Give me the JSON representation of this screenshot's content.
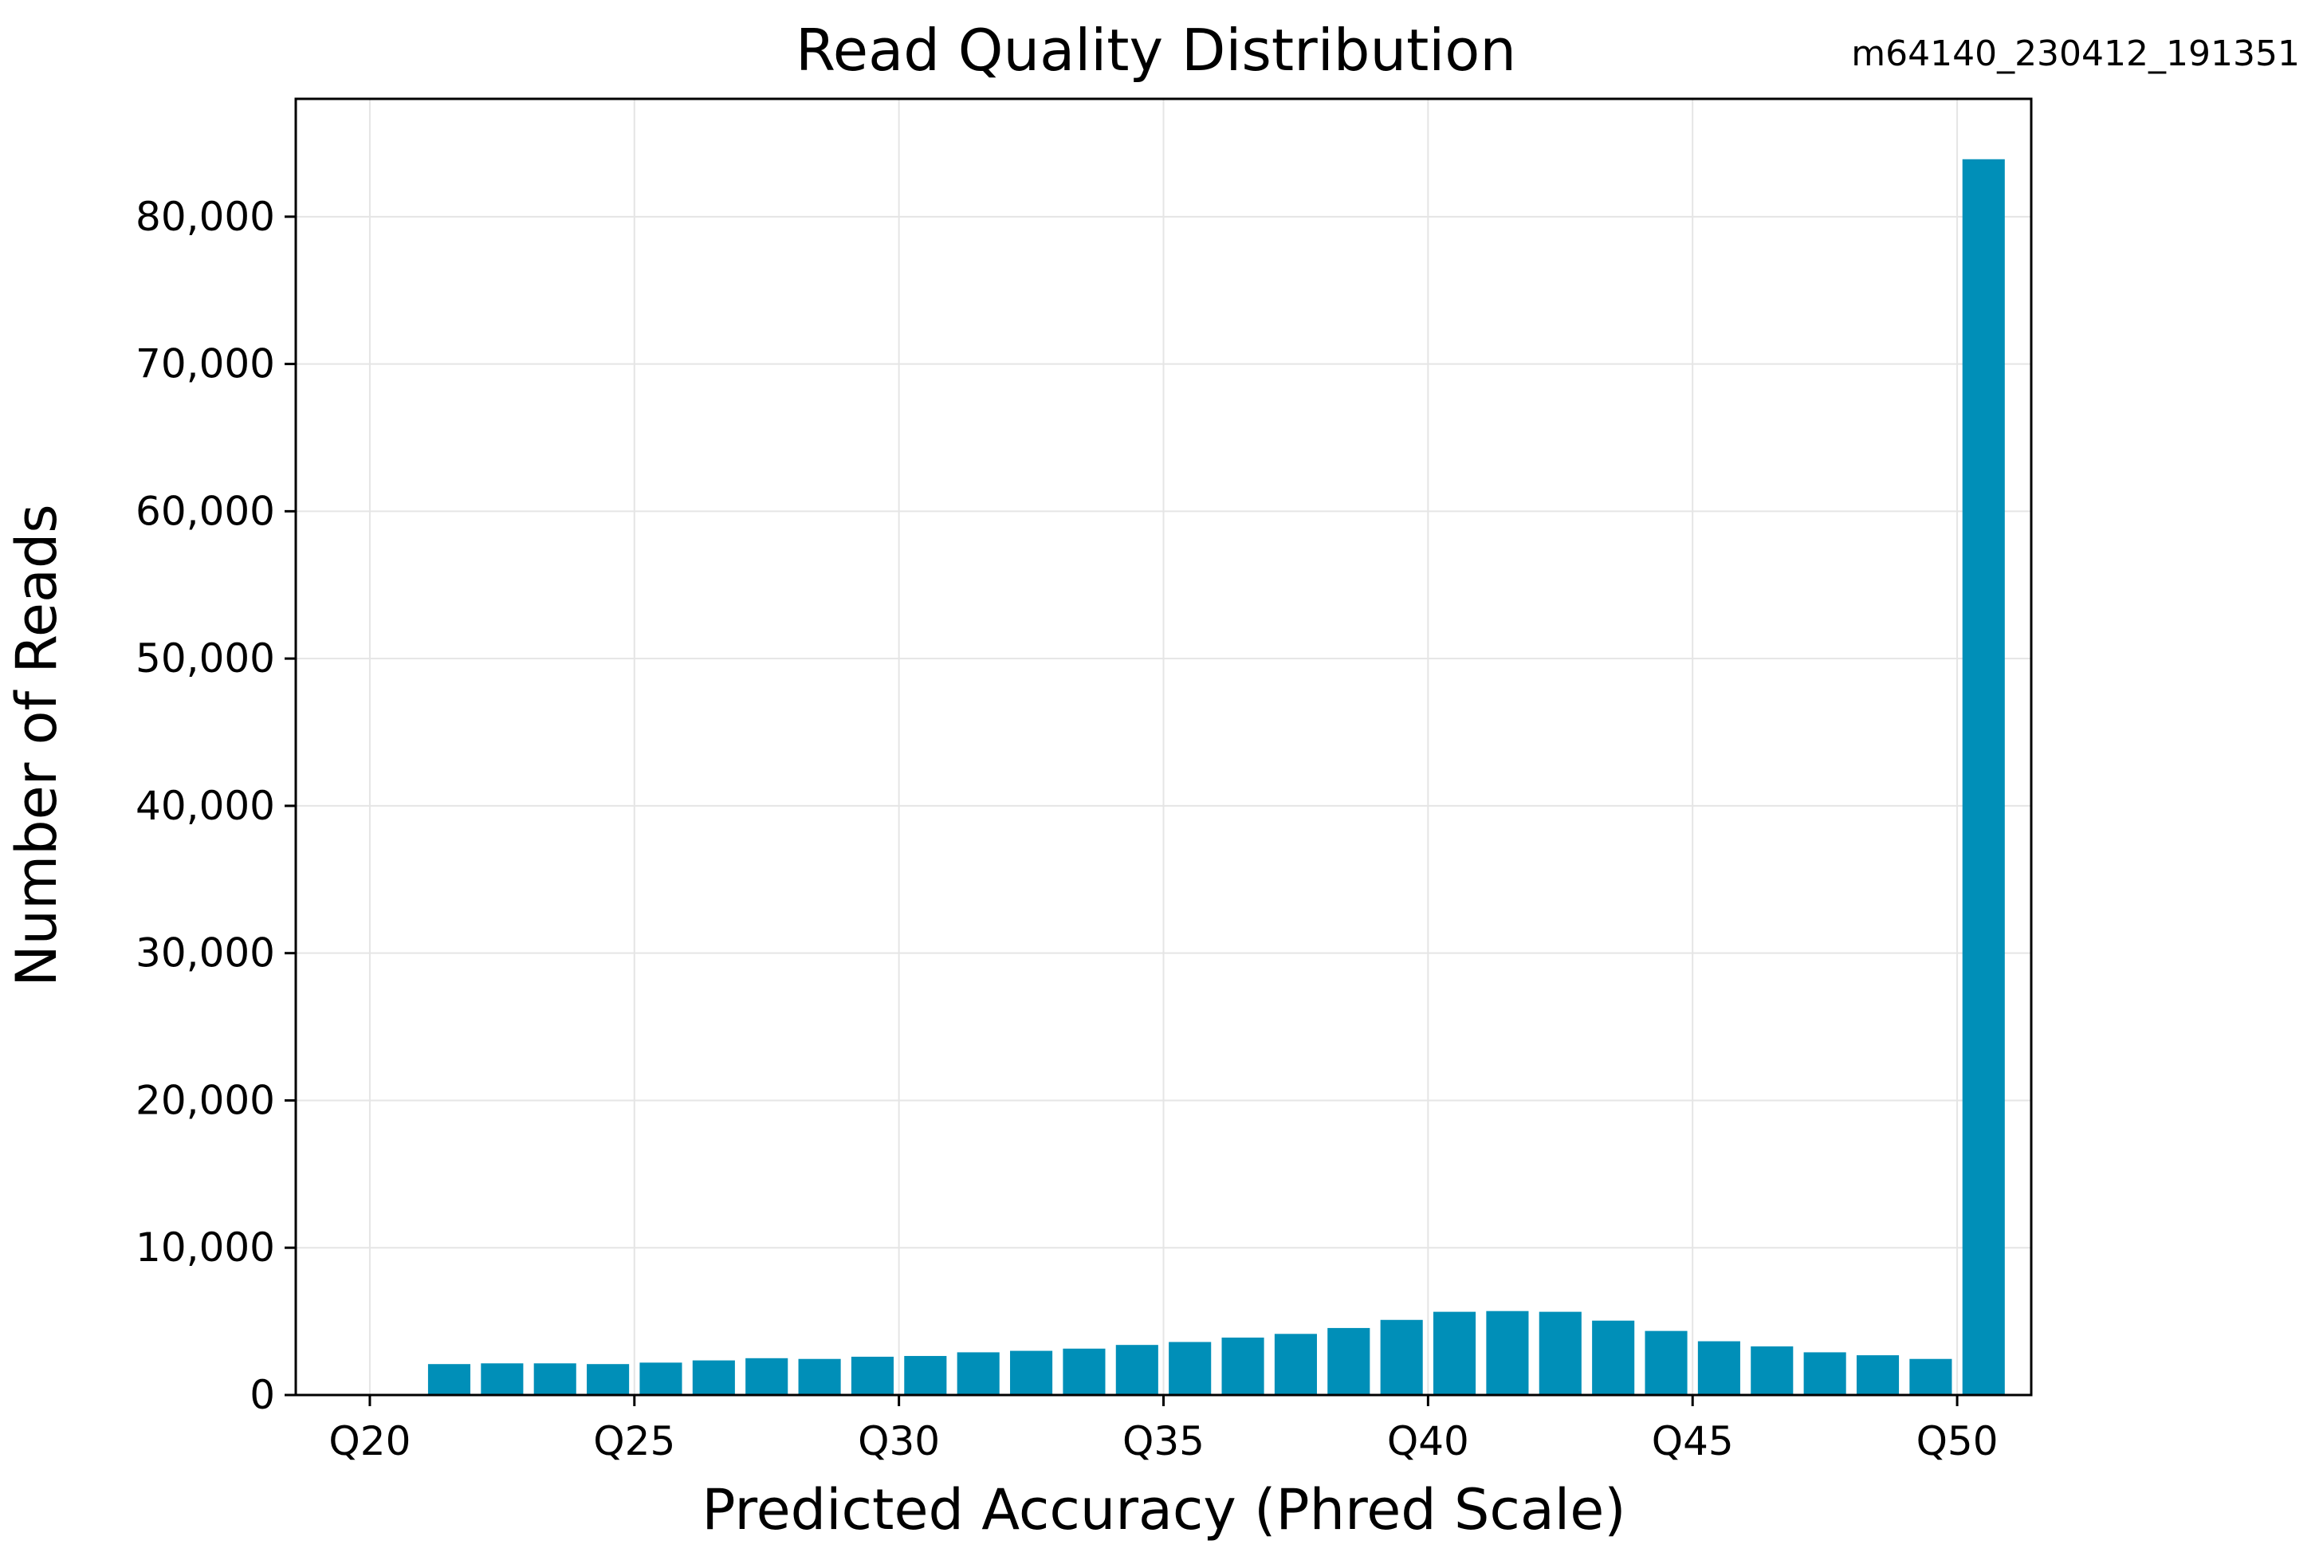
{
  "chart_data": {
    "type": "bar",
    "title": "Read Quality Distribution",
    "subtitle": "m64140_230412_191351",
    "xlabel": "Predicted Accuracy (Phred Scale)",
    "ylabel": "Number of Reads",
    "x": [
      20,
      21,
      22,
      23,
      24,
      25,
      26,
      27,
      28,
      29,
      30,
      31,
      32,
      33,
      34,
      35,
      36,
      37,
      38,
      39,
      40,
      41,
      42,
      43,
      44,
      45,
      46,
      47,
      48,
      49,
      50
    ],
    "values": [
      0,
      2100,
      2150,
      2150,
      2100,
      2200,
      2350,
      2500,
      2450,
      2600,
      2650,
      2900,
      3000,
      3150,
      3400,
      3600,
      3900,
      4150,
      4550,
      5100,
      5650,
      5700,
      5650,
      5050,
      4350,
      3650,
      3300,
      2900,
      2700,
      2450,
      83900
    ],
    "xlim": [
      18.6,
      51.4
    ],
    "ylim": [
      0,
      88000
    ],
    "xticks": [
      20,
      25,
      30,
      35,
      40,
      45,
      50
    ],
    "xtick_labels": [
      "Q20",
      "Q25",
      "Q30",
      "Q35",
      "Q40",
      "Q45",
      "Q50"
    ],
    "yticks": [
      0,
      10000,
      20000,
      30000,
      40000,
      50000,
      60000,
      70000,
      80000
    ],
    "ytick_labels": [
      "0",
      "10,000",
      "20,000",
      "30,000",
      "40,000",
      "50,000",
      "60,000",
      "70,000",
      "80,000"
    ],
    "bar_color": "#008fb8",
    "grid": true,
    "grid_color": "#e5e5e5"
  }
}
